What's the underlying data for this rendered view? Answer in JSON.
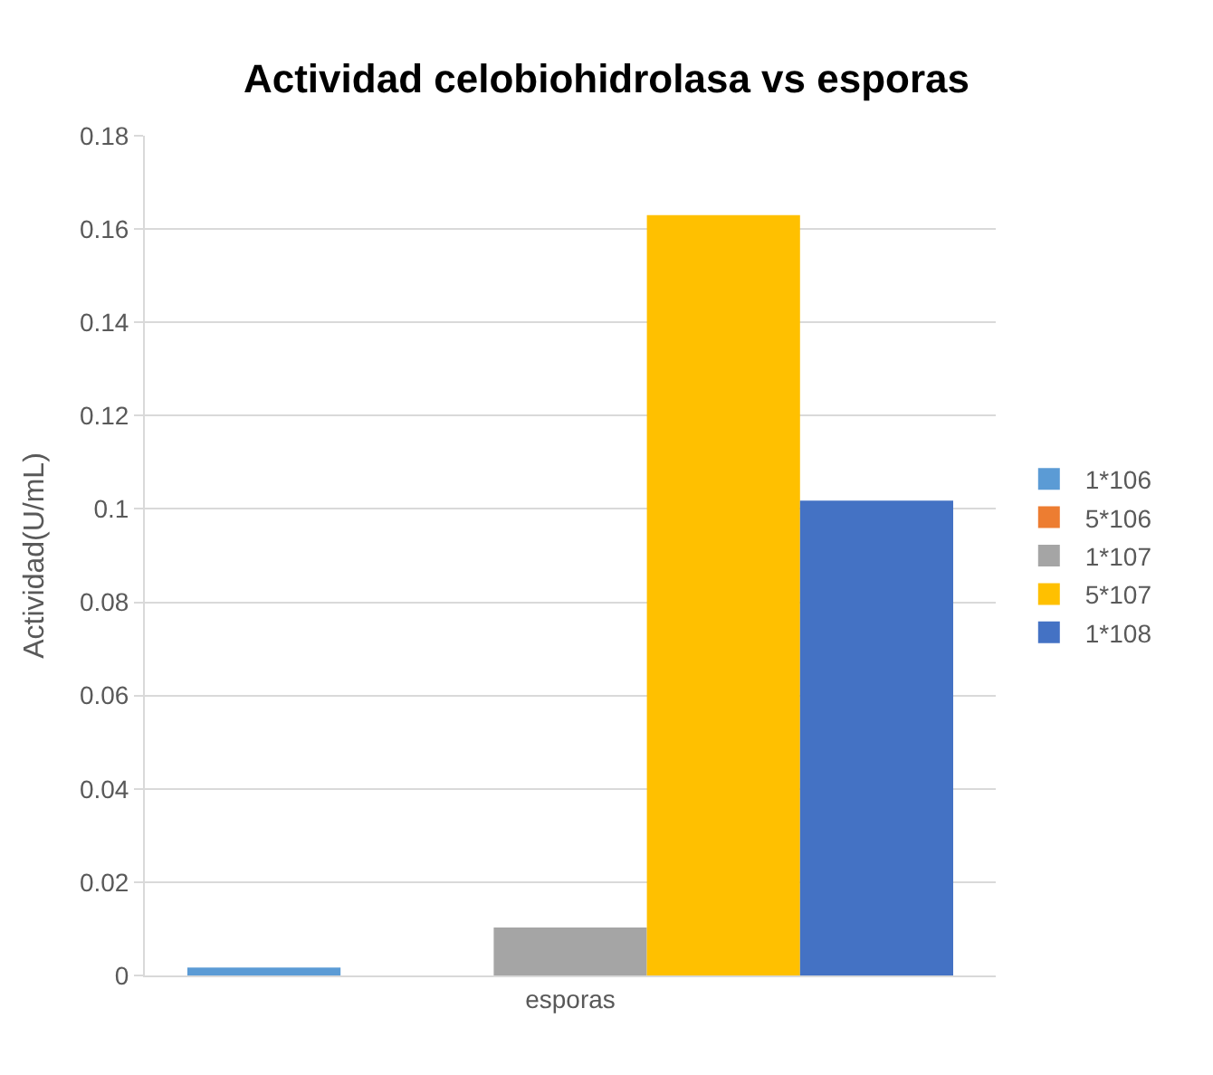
{
  "chart_data": {
    "type": "bar",
    "title": "Actividad celobiohidrolasa vs esporas",
    "ylabel": "Actividad(U/mL)",
    "categories": [
      "esporas"
    ],
    "series": [
      {
        "name": "1*106",
        "color": "#5b9bd5",
        "values": [
          0.0017
        ]
      },
      {
        "name": "5*106",
        "color": "#ed7d31",
        "values": [
          0
        ]
      },
      {
        "name": "1*107",
        "color": "#a5a5a5",
        "values": [
          0.0103
        ]
      },
      {
        "name": "5*107",
        "color": "#ffc000",
        "values": [
          0.163
        ]
      },
      {
        "name": "1*108",
        "color": "#4472c4",
        "values": [
          0.1018
        ]
      }
    ],
    "ylim": [
      0,
      0.18
    ],
    "yticks": [
      0,
      0.02,
      0.04,
      0.06,
      0.08,
      0.1,
      0.12,
      0.14,
      0.16,
      0.18
    ],
    "grid": "y",
    "legend": "right"
  }
}
